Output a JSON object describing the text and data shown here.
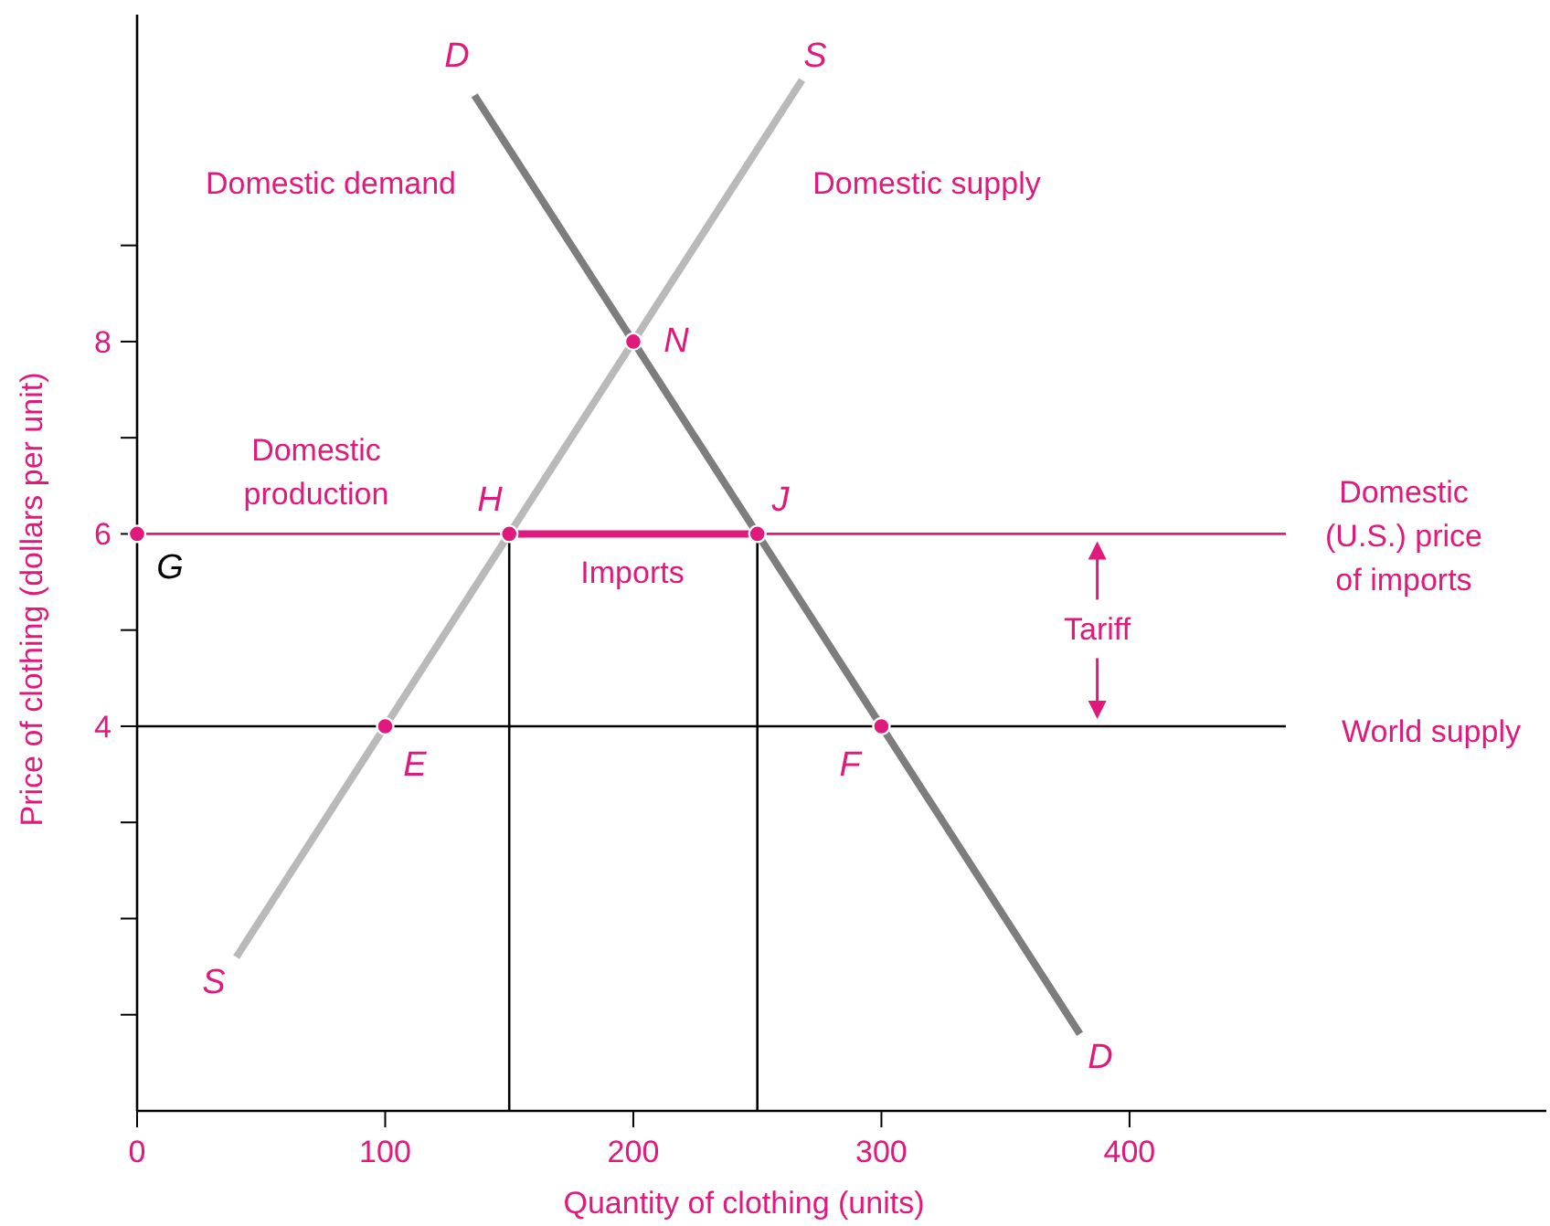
{
  "chart_data": {
    "type": "line",
    "xlabel": "Quantity of clothing (units)",
    "ylabel": "Price of clothing (dollars per unit)",
    "xlim": [
      0,
      568
    ],
    "ylim": [
      0,
      11.4
    ],
    "xticks": [
      0,
      100,
      200,
      300,
      400
    ],
    "yticks": [
      {
        "value": 1,
        "label": null
      },
      {
        "value": 2,
        "label": null
      },
      {
        "value": 3,
        "label": null
      },
      4,
      {
        "value": 5,
        "label": null
      },
      6,
      {
        "value": 7,
        "label": null
      },
      8,
      {
        "value": 9,
        "label": null
      }
    ],
    "grid": false,
    "series": [
      {
        "color": "#b9b9b9",
        "x": [
          40,
          268
        ],
        "values": [
          1.6,
          10.72
        ]
      },
      {
        "color": "#7d7d7d",
        "x": [
          136,
          380
        ],
        "values": [
          10.56,
          0.8
        ]
      },
      {
        "color": "#e0197d",
        "x": [
          0,
          463
        ],
        "values": [
          6,
          6
        ]
      },
      {
        "color": "#000000",
        "x": [
          0,
          463
        ],
        "values": [
          4,
          4
        ]
      },
      {
        "color": "#e0197d",
        "x": [
          150,
          250
        ],
        "values": [
          6,
          6
        ]
      },
      {
        "color": "#000000",
        "x": [
          150,
          150
        ],
        "values": [
          0,
          6
        ]
      },
      {
        "color": "#000000",
        "x": [
          250,
          250
        ],
        "values": [
          0,
          6
        ]
      },
      {
        "type": "scatter",
        "color": "#e0197d",
        "marker": "circle",
        "x": [
          0,
          150,
          250,
          200,
          100,
          300
        ],
        "values": [
          6,
          6,
          6,
          8,
          4,
          4
        ]
      }
    ],
    "annotations": [
      "Domestic demand",
      "Domestic supply",
      "Domestic\nproduction",
      "Imports",
      {
        "text": "Tariff",
        "x": 387,
        "y": 6
      },
      "Domestic\n(U.S.) price\nof imports",
      "World supply",
      "D",
      "S",
      "N",
      "H",
      "J",
      "G",
      "E",
      "F",
      "S",
      "D"
    ]
  }
}
